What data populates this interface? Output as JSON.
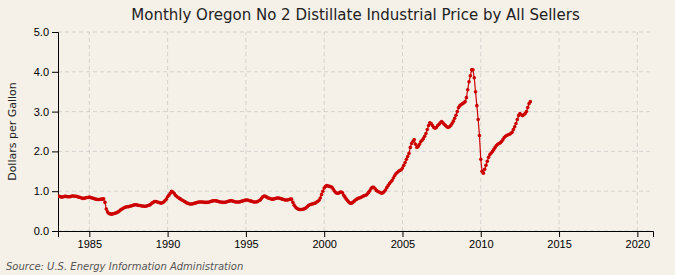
{
  "chart_data": {
    "type": "line",
    "title": "Monthly Oregon No 2 Distillate Industrial Price by All Sellers",
    "ylabel": "Dollars per Gallon",
    "annotation": "Source: U.S. Energy Information Administration",
    "color": "#cc0000",
    "marker": "dot",
    "grid": true,
    "xlim": [
      1983,
      2021
    ],
    "ylim": [
      0.0,
      5.0
    ],
    "xticks": [
      1985,
      1990,
      1995,
      2000,
      2005,
      2010,
      2015,
      2020
    ],
    "yticks": [
      {
        "value": 0,
        "label": "0.0"
      },
      {
        "value": 1,
        "label": "1.0"
      },
      {
        "value": 2,
        "label": "2.0"
      },
      {
        "value": 3,
        "label": "3.0"
      },
      {
        "value": 4,
        "label": "4.0"
      },
      {
        "value": 5,
        "label": "5.0"
      }
    ],
    "x": [
      1983,
      1983.083333,
      1983.166667,
      1983.25,
      1983.333333,
      1983.416667,
      1983.5,
      1983.583333,
      1983.666667,
      1983.75,
      1983.833333,
      1983.916667,
      1984,
      1984.083333,
      1984.166667,
      1984.25,
      1984.333333,
      1984.416667,
      1984.5,
      1984.583333,
      1984.666667,
      1984.75,
      1984.833333,
      1984.916667,
      1985,
      1985.083333,
      1985.166667,
      1985.25,
      1985.333333,
      1985.416667,
      1985.5,
      1985.583333,
      1985.666667,
      1985.75,
      1985.833333,
      1985.916667,
      1986,
      1986.083333,
      1986.166667,
      1986.25,
      1986.333333,
      1986.416667,
      1986.5,
      1986.583333,
      1986.666667,
      1986.75,
      1986.833333,
      1986.916667,
      1987,
      1987.083333,
      1987.166667,
      1987.25,
      1987.333333,
      1987.416667,
      1987.5,
      1987.583333,
      1987.666667,
      1987.75,
      1987.833333,
      1987.916667,
      1988,
      1988.083333,
      1988.166667,
      1988.25,
      1988.333333,
      1988.416667,
      1988.5,
      1988.583333,
      1988.666667,
      1988.75,
      1988.833333,
      1988.916667,
      1989,
      1989.083333,
      1989.166667,
      1989.25,
      1989.333333,
      1989.416667,
      1989.5,
      1989.583333,
      1989.666667,
      1989.75,
      1989.833333,
      1989.916667,
      1990,
      1990.083333,
      1990.166667,
      1990.25,
      1990.333333,
      1990.416667,
      1990.5,
      1990.583333,
      1990.666667,
      1990.75,
      1990.833333,
      1990.916667,
      1991,
      1991.083333,
      1991.166667,
      1991.25,
      1991.333333,
      1991.416667,
      1991.5,
      1991.583333,
      1991.666667,
      1991.75,
      1991.833333,
      1991.916667,
      1992,
      1992.083333,
      1992.166667,
      1992.25,
      1992.333333,
      1992.416667,
      1992.5,
      1992.583333,
      1992.666667,
      1992.75,
      1992.833333,
      1992.916667,
      1993,
      1993.083333,
      1993.166667,
      1993.25,
      1993.333333,
      1993.416667,
      1993.5,
      1993.583333,
      1993.666667,
      1993.75,
      1993.833333,
      1993.916667,
      1994,
      1994.083333,
      1994.166667,
      1994.25,
      1994.333333,
      1994.416667,
      1994.5,
      1994.583333,
      1994.666667,
      1994.75,
      1994.833333,
      1994.916667,
      1995,
      1995.083333,
      1995.166667,
      1995.25,
      1995.333333,
      1995.416667,
      1995.5,
      1995.583333,
      1995.666667,
      1995.75,
      1995.833333,
      1995.916667,
      1996,
      1996.083333,
      1996.166667,
      1996.25,
      1996.333333,
      1996.416667,
      1996.5,
      1996.583333,
      1996.666667,
      1996.75,
      1996.833333,
      1996.916667,
      1997,
      1997.083333,
      1997.166667,
      1997.25,
      1997.333333,
      1997.416667,
      1997.5,
      1997.583333,
      1997.666667,
      1997.75,
      1997.833333,
      1997.916667,
      1998,
      1998.083333,
      1998.166667,
      1998.25,
      1998.333333,
      1998.416667,
      1998.5,
      1998.583333,
      1998.666667,
      1998.75,
      1998.833333,
      1998.916667,
      1999,
      1999.083333,
      1999.166667,
      1999.25,
      1999.333333,
      1999.416667,
      1999.5,
      1999.583333,
      1999.666667,
      1999.75,
      1999.833333,
      1999.916667,
      2000,
      2000.083333,
      2000.166667,
      2000.25,
      2000.333333,
      2000.416667,
      2000.5,
      2000.583333,
      2000.666667,
      2000.75,
      2000.833333,
      2000.916667,
      2001,
      2001.083333,
      2001.166667,
      2001.25,
      2001.333333,
      2001.416667,
      2001.5,
      2001.583333,
      2001.666667,
      2001.75,
      2001.833333,
      2001.916667,
      2002,
      2002.083333,
      2002.166667,
      2002.25,
      2002.333333,
      2002.416667,
      2002.5,
      2002.583333,
      2002.666667,
      2002.75,
      2002.833333,
      2002.916667,
      2003,
      2003.083333,
      2003.166667,
      2003.25,
      2003.333333,
      2003.416667,
      2003.5,
      2003.583333,
      2003.666667,
      2003.75,
      2003.833333,
      2003.916667,
      2004,
      2004.083333,
      2004.166667,
      2004.25,
      2004.333333,
      2004.416667,
      2004.5,
      2004.583333,
      2004.666667,
      2004.75,
      2004.833333,
      2004.916667,
      2005,
      2005.083333,
      2005.166667,
      2005.25,
      2005.333333,
      2005.416667,
      2005.5,
      2005.583333,
      2005.666667,
      2005.75,
      2005.833333,
      2005.916667,
      2006,
      2006.083333,
      2006.166667,
      2006.25,
      2006.333333,
      2006.416667,
      2006.5,
      2006.583333,
      2006.666667,
      2006.75,
      2006.833333,
      2006.916667,
      2007,
      2007.083333,
      2007.166667,
      2007.25,
      2007.333333,
      2007.416667,
      2007.5,
      2007.583333,
      2007.666667,
      2007.75,
      2007.833333,
      2007.916667,
      2008,
      2008.083333,
      2008.166667,
      2008.25,
      2008.333333,
      2008.416667,
      2008.5,
      2008.583333,
      2008.666667,
      2008.75,
      2008.833333,
      2008.916667,
      2009,
      2009.083333,
      2009.166667,
      2009.25,
      2009.333333,
      2009.416667,
      2009.5,
      2009.583333,
      2009.666667,
      2009.75,
      2009.833333,
      2009.916667,
      2010,
      2010.083333,
      2010.166667,
      2010.25,
      2010.333333,
      2010.416667,
      2010.5,
      2010.583333,
      2010.666667,
      2010.75,
      2010.833333,
      2010.916667,
      2011,
      2011.083333,
      2011.166667,
      2011.25,
      2011.333333,
      2011.416667,
      2011.5,
      2011.583333,
      2011.666667,
      2011.75,
      2011.833333,
      2011.916667,
      2012,
      2012.083333,
      2012.166667,
      2012.25,
      2012.333333,
      2012.416667,
      2012.5,
      2012.583333,
      2012.666667,
      2012.75,
      2012.833333,
      2012.916667,
      2013,
      2013.083333,
      2013.166667
    ],
    "values": [
      0.88,
      0.87,
      0.86,
      0.85,
      0.86,
      0.87,
      0.87,
      0.86,
      0.86,
      0.86,
      0.87,
      0.88,
      0.88,
      0.87,
      0.87,
      0.86,
      0.85,
      0.84,
      0.83,
      0.82,
      0.82,
      0.83,
      0.84,
      0.84,
      0.85,
      0.84,
      0.83,
      0.82,
      0.81,
      0.8,
      0.79,
      0.79,
      0.79,
      0.8,
      0.8,
      0.81,
      0.72,
      0.55,
      0.48,
      0.44,
      0.43,
      0.42,
      0.43,
      0.44,
      0.45,
      0.46,
      0.48,
      0.5,
      0.53,
      0.55,
      0.57,
      0.59,
      0.6,
      0.61,
      0.61,
      0.62,
      0.63,
      0.64,
      0.65,
      0.66,
      0.66,
      0.65,
      0.64,
      0.64,
      0.63,
      0.63,
      0.62,
      0.62,
      0.63,
      0.64,
      0.65,
      0.67,
      0.7,
      0.72,
      0.74,
      0.74,
      0.73,
      0.72,
      0.71,
      0.7,
      0.71,
      0.73,
      0.76,
      0.8,
      0.86,
      0.9,
      0.95,
      1.0,
      0.98,
      0.95,
      0.9,
      0.87,
      0.84,
      0.82,
      0.8,
      0.78,
      0.76,
      0.74,
      0.72,
      0.7,
      0.69,
      0.68,
      0.68,
      0.68,
      0.69,
      0.7,
      0.71,
      0.72,
      0.73,
      0.73,
      0.73,
      0.73,
      0.72,
      0.72,
      0.72,
      0.72,
      0.73,
      0.74,
      0.75,
      0.76,
      0.76,
      0.76,
      0.75,
      0.74,
      0.73,
      0.73,
      0.72,
      0.72,
      0.72,
      0.73,
      0.74,
      0.75,
      0.76,
      0.76,
      0.75,
      0.74,
      0.73,
      0.73,
      0.73,
      0.73,
      0.74,
      0.75,
      0.76,
      0.77,
      0.78,
      0.78,
      0.77,
      0.76,
      0.75,
      0.74,
      0.73,
      0.73,
      0.73,
      0.74,
      0.76,
      0.78,
      0.82,
      0.86,
      0.88,
      0.87,
      0.85,
      0.83,
      0.82,
      0.81,
      0.8,
      0.8,
      0.81,
      0.82,
      0.83,
      0.83,
      0.82,
      0.81,
      0.8,
      0.79,
      0.78,
      0.78,
      0.78,
      0.79,
      0.8,
      0.8,
      0.72,
      0.65,
      0.6,
      0.57,
      0.55,
      0.54,
      0.54,
      0.54,
      0.55,
      0.56,
      0.58,
      0.61,
      0.64,
      0.66,
      0.67,
      0.68,
      0.69,
      0.7,
      0.72,
      0.74,
      0.77,
      0.83,
      0.92,
      1.0,
      1.08,
      1.12,
      1.14,
      1.13,
      1.12,
      1.11,
      1.1,
      1.05,
      1.0,
      0.96,
      0.95,
      0.95,
      0.97,
      0.98,
      0.96,
      0.9,
      0.85,
      0.8,
      0.76,
      0.72,
      0.7,
      0.7,
      0.72,
      0.75,
      0.78,
      0.8,
      0.82,
      0.83,
      0.84,
      0.86,
      0.88,
      0.89,
      0.9,
      0.93,
      0.97,
      1.01,
      1.07,
      1.1,
      1.1,
      1.06,
      1.02,
      1.0,
      0.98,
      0.96,
      0.95,
      0.96,
      0.99,
      1.03,
      1.09,
      1.14,
      1.19,
      1.23,
      1.27,
      1.33,
      1.39,
      1.44,
      1.47,
      1.5,
      1.52,
      1.54,
      1.58,
      1.65,
      1.72,
      1.8,
      1.87,
      1.95,
      2.1,
      2.2,
      2.25,
      2.3,
      2.18,
      2.1,
      2.12,
      2.18,
      2.24,
      2.28,
      2.32,
      2.38,
      2.45,
      2.55,
      2.65,
      2.72,
      2.7,
      2.65,
      2.6,
      2.58,
      2.6,
      2.65,
      2.68,
      2.72,
      2.75,
      2.72,
      2.68,
      2.65,
      2.62,
      2.6,
      2.62,
      2.65,
      2.7,
      2.76,
      2.83,
      2.91,
      3.0,
      3.1,
      3.15,
      3.18,
      3.2,
      3.22,
      3.25,
      3.35,
      3.55,
      3.75,
      3.9,
      4.05,
      4.05,
      3.85,
      3.5,
      3.15,
      2.8,
      2.4,
      1.8,
      1.5,
      1.45,
      1.55,
      1.65,
      1.75,
      1.85,
      1.92,
      1.96,
      2.0,
      2.05,
      2.1,
      2.15,
      2.18,
      2.2,
      2.22,
      2.25,
      2.3,
      2.35,
      2.38,
      2.4,
      2.42,
      2.43,
      2.45,
      2.48,
      2.55,
      2.62,
      2.7,
      2.8,
      2.9,
      2.95,
      2.92,
      2.9,
      2.92,
      2.95,
      3.0,
      3.1,
      3.2,
      3.25
    ]
  }
}
